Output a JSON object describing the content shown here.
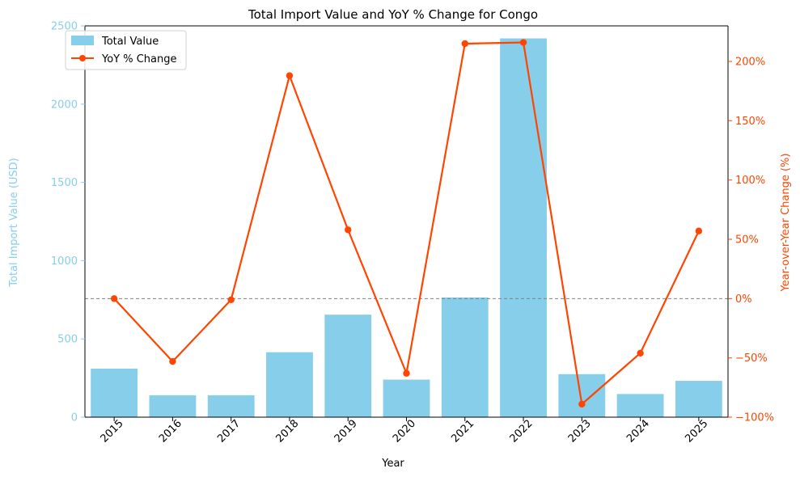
{
  "chart_data": {
    "type": "bar",
    "title": "Total Import Value and YoY % Change for Congo",
    "xlabel": "Year",
    "ylabel": "Total Import Value (USD)",
    "y2label": "Year-over-Year Change (%)",
    "categories": [
      "2015",
      "2016",
      "2017",
      "2018",
      "2019",
      "2020",
      "2021",
      "2022",
      "2023",
      "2024",
      "2025"
    ],
    "series": [
      {
        "name": "Total Value",
        "type": "bar",
        "axis": "left",
        "color": "#87CEEB",
        "values": [
          310,
          140,
          140,
          415,
          655,
          240,
          765,
          2420,
          275,
          148,
          232
        ]
      },
      {
        "name": "YoY % Change",
        "type": "line",
        "axis": "right",
        "color": "#FF4500",
        "values": [
          0,
          -53,
          -1,
          188,
          58,
          -63,
          215,
          216,
          -89,
          -46,
          57
        ]
      }
    ],
    "ylim": [
      0,
      2500
    ],
    "y2lim": [
      -100,
      230
    ],
    "yticks": [
      "0",
      "500",
      "1000",
      "1500",
      "2000",
      "2500"
    ],
    "y2ticks": [
      "−100%",
      "−50%",
      "0%",
      "50%",
      "100%",
      "150%",
      "200%"
    ],
    "zero_line": {
      "axis": "right",
      "value": 0,
      "style": "dashed",
      "color": "#808080"
    },
    "legend": {
      "placement": "top-left",
      "items": [
        "Total Value",
        "YoY % Change"
      ]
    },
    "grid": false
  }
}
